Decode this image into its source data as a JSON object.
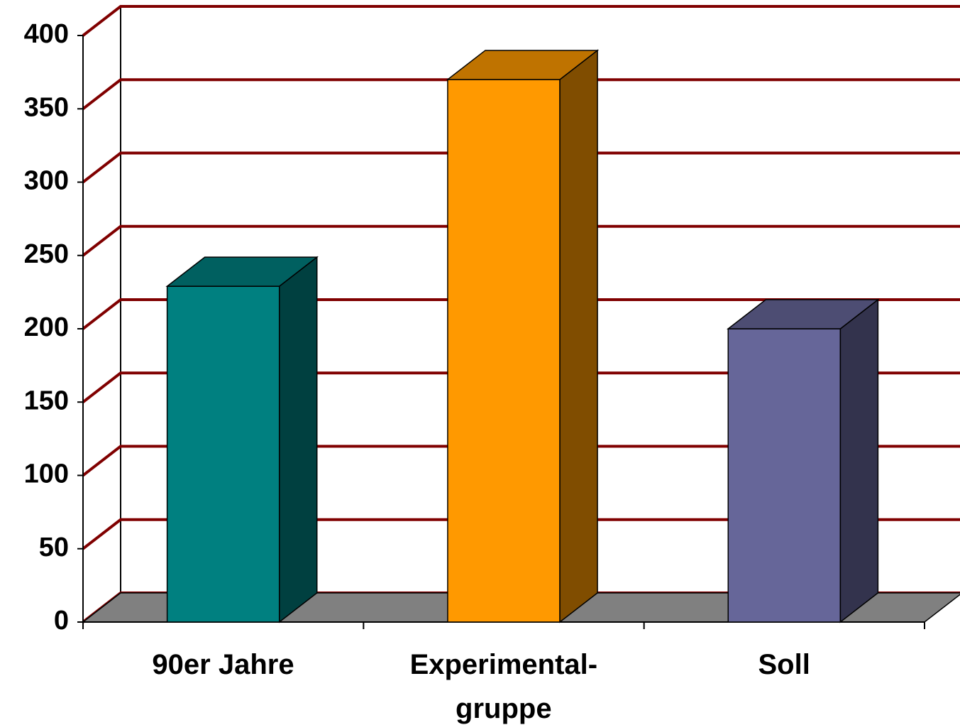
{
  "chart_data": {
    "type": "bar3d",
    "categories": [
      "90er Jahre",
      "Experimental-\ngruppe",
      "Soll"
    ],
    "values": [
      229,
      370,
      200
    ],
    "colors": [
      "#008080",
      "#ff9900",
      "#666699"
    ],
    "ylim": [
      0,
      400
    ],
    "yticks": [
      0,
      50,
      100,
      150,
      200,
      250,
      300,
      350,
      400
    ],
    "grid": true,
    "grid_color": "#800000"
  }
}
